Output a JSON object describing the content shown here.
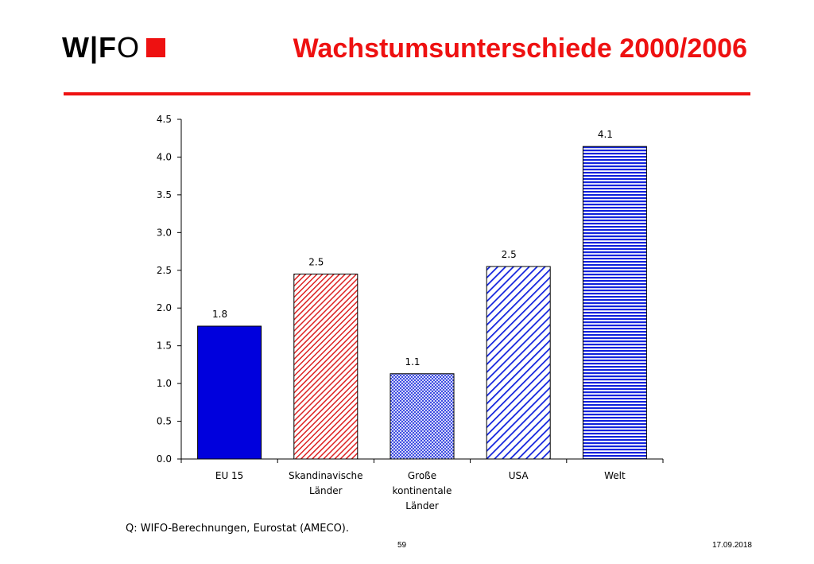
{
  "header": {
    "logo_text": "W|F",
    "logo_o": "O",
    "title": "Wachstumsunterschiede 2000/2006",
    "accent_color": "#ee1111"
  },
  "chart_data": {
    "type": "bar",
    "categories": [
      [
        "EU 15"
      ],
      [
        "Skandinavische",
        "Länder"
      ],
      [
        "Große",
        "kontinentale",
        "Länder"
      ],
      [
        "USA"
      ],
      [
        "Welt"
      ]
    ],
    "values": [
      1.76,
      2.45,
      1.13,
      2.55,
      4.14
    ],
    "data_labels": [
      "1.8",
      "2.5",
      "1.1",
      "2.5",
      "4.1"
    ],
    "yticks": [
      "0.0",
      "0.5",
      "1.0",
      "1.5",
      "2.0",
      "2.5",
      "3.0",
      "3.5",
      "4.0",
      "4.5"
    ],
    "ylim": [
      0,
      4.5
    ],
    "title": "",
    "xlabel": "",
    "ylabel": "",
    "bar_styles": [
      "solid-blue",
      "diagonal-red",
      "crosshatch-blue",
      "diagonal-blue",
      "horizontal-blue"
    ],
    "colors": {
      "blue": "#0000dd",
      "red": "#dd2222"
    }
  },
  "footer": {
    "source": "Q: WIFO-Berechnungen, Eurostat (AMECO).",
    "page_number": "59",
    "date": "17.09.2018"
  }
}
